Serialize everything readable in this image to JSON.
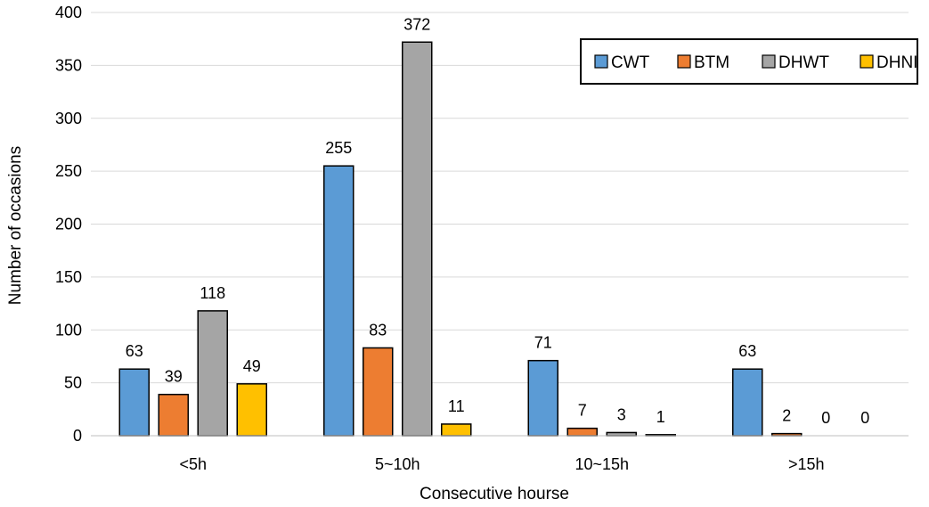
{
  "chart_data": {
    "type": "bar",
    "title": "",
    "xlabel": "Consecutive hourse",
    "ylabel": "Number of occasions",
    "ylim": [
      0,
      400
    ],
    "yticks": [
      0,
      50,
      100,
      150,
      200,
      250,
      300,
      350,
      400
    ],
    "grid": true,
    "legend_position": "top-right",
    "categories": [
      "<5h",
      "5~10h",
      "10~15h",
      ">15h"
    ],
    "series": [
      {
        "name": "CWT",
        "color": "#5B9BD5",
        "values": [
          63,
          255,
          71,
          63
        ]
      },
      {
        "name": "BTM",
        "color": "#ED7D31",
        "values": [
          39,
          83,
          7,
          2
        ]
      },
      {
        "name": "DHWT",
        "color": "#A5A5A5",
        "values": [
          118,
          372,
          3,
          0
        ]
      },
      {
        "name": "DHNI",
        "color": "#FFC000",
        "values": [
          49,
          11,
          1,
          0
        ]
      }
    ]
  }
}
